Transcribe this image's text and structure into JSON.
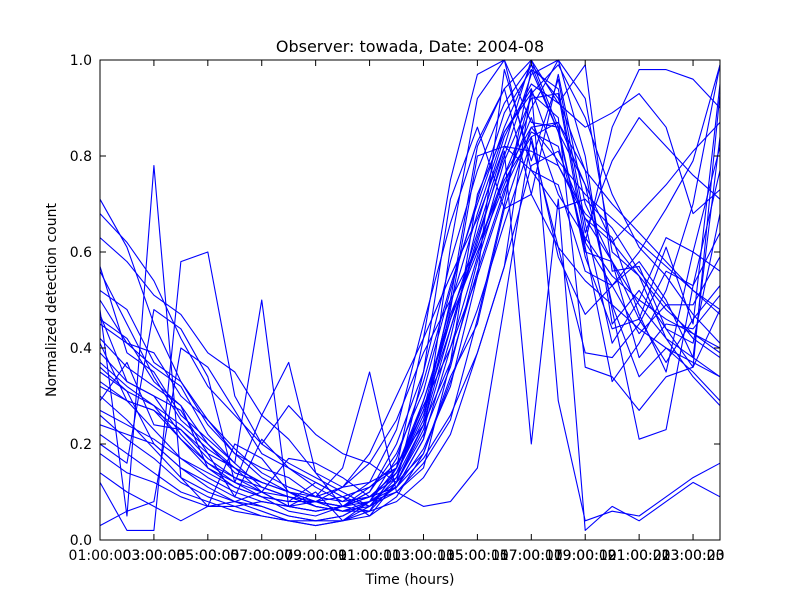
{
  "chart_data": {
    "type": "line",
    "title": "Observer: towada, Date: 2004-08",
    "xlabel": "Time (hours)",
    "ylabel": "Normalized detection count",
    "xlim": [
      1,
      24
    ],
    "ylim": [
      0,
      1
    ],
    "x_tick_values": [
      1,
      3,
      5,
      7,
      9,
      11,
      13,
      15,
      17,
      19,
      21,
      23
    ],
    "x_tick_labels_a": [
      "01:00:00",
      "03:00:00",
      "05:00:00",
      "07:00:00",
      "09:00:00",
      "11:00:00",
      "13:00:00",
      "15:00:00",
      "17:00:00",
      "19:00:00",
      "21:00:00",
      "23:00:00"
    ],
    "x_tick_labels_b": [
      "03:00:03",
      "05:00:05",
      "07:00:07",
      "09:00:09",
      "11:00:11",
      "13:00:13",
      "15:00:15",
      "17:00:17",
      "19:00:19",
      "21:00:21",
      "23:00:23"
    ],
    "y_ticks": [
      "0.0",
      "0.2",
      "0.4",
      "0.6",
      "0.8",
      "1.0"
    ],
    "grid": false,
    "line_color": "#0000ff",
    "x": [
      1,
      2,
      3,
      4,
      5,
      6,
      7,
      8,
      9,
      10,
      11,
      12,
      13,
      14,
      15,
      16,
      17,
      18,
      19,
      20,
      21,
      22,
      23,
      24
    ],
    "series": [
      {
        "values": [
          0.71,
          0.61,
          0.45,
          0.33,
          0.25,
          0.18,
          0.15,
          0.13,
          0.09,
          0.08,
          0.12,
          0.15,
          0.28,
          0.4,
          0.55,
          0.72,
          0.93,
          0.99,
          0.88,
          0.72,
          0.61,
          0.55,
          0.47,
          0.41
        ]
      },
      {
        "values": [
          0.56,
          0.45,
          0.34,
          0.25,
          0.2,
          0.15,
          0.12,
          0.1,
          0.08,
          0.07,
          0.09,
          0.14,
          0.26,
          0.46,
          0.64,
          0.82,
          1.0,
          0.86,
          0.59,
          0.44,
          0.46,
          0.37,
          0.46,
          0.53
        ]
      },
      {
        "values": [
          0.47,
          0.33,
          0.3,
          0.22,
          0.16,
          0.13,
          0.1,
          0.09,
          0.07,
          0.06,
          0.08,
          0.12,
          0.22,
          0.36,
          0.58,
          0.76,
          0.9,
          1.0,
          0.92,
          0.6,
          0.55,
          0.42,
          0.34,
          0.28
        ]
      },
      {
        "values": [
          0.41,
          0.29,
          0.23,
          0.17,
          0.13,
          0.1,
          0.08,
          0.07,
          0.06,
          0.07,
          0.1,
          0.18,
          0.31,
          0.52,
          0.71,
          0.89,
          0.98,
          0.85,
          0.74,
          0.62,
          0.55,
          0.48,
          0.43,
          0.39
        ]
      },
      {
        "values": [
          0.36,
          0.31,
          0.2,
          0.15,
          0.12,
          0.09,
          0.07,
          0.05,
          0.04,
          0.05,
          0.08,
          0.15,
          0.27,
          0.49,
          0.68,
          0.85,
          0.94,
          0.78,
          0.67,
          0.58,
          0.49,
          0.42,
          0.38,
          0.34
        ]
      },
      {
        "values": [
          0.3,
          0.25,
          0.19,
          0.13,
          0.1,
          0.08,
          0.06,
          0.04,
          0.03,
          0.04,
          0.06,
          0.12,
          0.24,
          0.44,
          0.63,
          0.8,
          0.97,
          1.0,
          0.8,
          0.45,
          0.52,
          0.44,
          0.36,
          0.48
        ]
      },
      {
        "values": [
          0.26,
          0.21,
          0.17,
          0.12,
          0.09,
          0.07,
          0.05,
          0.04,
          0.03,
          0.04,
          0.07,
          0.13,
          0.29,
          0.46,
          0.6,
          0.74,
          0.88,
          0.72,
          0.63,
          0.55,
          0.5,
          0.46,
          0.43,
          0.4
        ]
      },
      {
        "values": [
          0.22,
          0.18,
          0.14,
          0.1,
          0.08,
          0.06,
          0.05,
          0.04,
          0.04,
          0.05,
          0.08,
          0.17,
          0.33,
          0.53,
          0.7,
          0.86,
          0.99,
          0.92,
          0.77,
          0.7,
          0.64,
          0.58,
          0.52,
          0.47
        ]
      },
      {
        "values": [
          0.48,
          0.05,
          0.78,
          0.13,
          0.07,
          0.08,
          0.1,
          0.17,
          0.16,
          0.13,
          0.09,
          0.11,
          0.21,
          0.61,
          0.92,
          1.0,
          0.77,
          0.74,
          0.56,
          0.53,
          0.43,
          0.49,
          0.49,
          0.59
        ]
      },
      {
        "values": [
          0.12,
          0.02,
          0.02,
          0.58,
          0.6,
          0.3,
          0.2,
          0.28,
          0.22,
          0.18,
          0.16,
          0.12,
          0.35,
          0.71,
          0.86,
          0.69,
          0.72,
          0.61,
          0.39,
          0.38,
          0.45,
          0.56,
          0.53,
          0.77
        ]
      },
      {
        "values": [
          0.03,
          0.06,
          0.08,
          0.4,
          0.36,
          0.27,
          0.18,
          0.15,
          0.12,
          0.09,
          0.07,
          0.11,
          0.19,
          0.32,
          0.55,
          0.98,
          0.79,
          0.96,
          0.66,
          0.41,
          0.5,
          0.63,
          0.6,
          0.82
        ]
      },
      {
        "values": [
          0.5,
          0.41,
          0.36,
          0.32,
          0.22,
          0.16,
          0.5,
          0.07,
          0.1,
          0.04,
          0.08,
          0.1,
          0.15,
          0.37,
          0.72,
          0.85,
          0.93,
          0.88,
          0.36,
          0.34,
          0.27,
          0.34,
          0.36,
          0.93
        ]
      },
      {
        "values": [
          0.63,
          0.58,
          0.51,
          0.47,
          0.39,
          0.35,
          0.26,
          0.21,
          0.14,
          0.11,
          0.12,
          0.23,
          0.45,
          0.66,
          0.83,
          0.94,
          1.0,
          0.91,
          0.99,
          0.56,
          0.57,
          0.44,
          0.41,
          0.68
        ]
      },
      {
        "values": [
          0.2,
          0.16,
          0.48,
          0.44,
          0.34,
          0.12,
          0.26,
          0.37,
          0.14,
          0.07,
          0.06,
          0.15,
          0.42,
          0.75,
          0.97,
          1.0,
          0.87,
          0.86,
          0.6,
          0.58,
          0.38,
          0.45,
          0.44,
          0.51
        ]
      },
      {
        "values": [
          0.29,
          0.37,
          0.24,
          0.23,
          0.18,
          0.09,
          0.21,
          0.15,
          0.11,
          0.08,
          0.09,
          0.13,
          0.24,
          0.48,
          0.8,
          0.82,
          0.81,
          0.78,
          0.68,
          0.63,
          0.47,
          0.35,
          0.6,
          0.56
        ]
      },
      {
        "values": [
          0.68,
          0.62,
          0.54,
          0.42,
          0.32,
          0.26,
          0.2,
          0.16,
          0.13,
          0.1,
          0.07,
          0.14,
          0.25,
          0.5,
          0.82,
          0.94,
          0.72,
          0.97,
          0.7,
          0.58,
          0.46,
          0.61,
          0.45,
          0.95
        ]
      },
      {
        "values": [
          0.46,
          0.42,
          0.33,
          0.28,
          0.15,
          0.11,
          0.09,
          0.08,
          0.12,
          0.09,
          0.05,
          0.12,
          0.23,
          0.42,
          0.66,
          0.84,
          0.95,
          0.91,
          0.86,
          0.89,
          0.93,
          0.86,
          0.68,
          0.73
        ]
      },
      {
        "values": [
          0.39,
          0.33,
          0.3,
          0.27,
          0.18,
          0.15,
          0.1,
          0.07,
          0.06,
          0.07,
          0.1,
          0.2,
          0.35,
          0.58,
          0.77,
          0.91,
          0.99,
          0.85,
          0.61,
          0.33,
          0.41,
          0.52,
          0.7,
          0.99
        ]
      },
      {
        "values": [
          0.33,
          0.29,
          0.27,
          0.21,
          0.15,
          0.12,
          0.09,
          0.06,
          0.05,
          0.07,
          0.11,
          0.15,
          0.29,
          0.47,
          0.61,
          0.75,
          0.84,
          0.59,
          0.47,
          0.53,
          0.6,
          0.69,
          0.79,
          0.99
        ]
      },
      {
        "values": [
          0.24,
          0.22,
          0.2,
          0.15,
          0.11,
          0.08,
          0.07,
          0.05,
          0.04,
          0.04,
          0.05,
          0.09,
          0.18,
          0.33,
          0.48,
          0.66,
          0.83,
          0.61,
          0.54,
          0.49,
          0.44,
          0.4,
          0.37,
          0.34
        ]
      },
      {
        "values": [
          0.32,
          0.29,
          0.27,
          0.23,
          0.17,
          0.13,
          0.11,
          0.09,
          0.07,
          0.06,
          0.06,
          0.08,
          0.13,
          0.22,
          0.39,
          0.57,
          0.94,
          0.29,
          0.04,
          0.06,
          0.05,
          0.09,
          0.13,
          0.16
        ]
      },
      {
        "values": [
          0.37,
          0.32,
          0.28,
          0.21,
          0.16,
          0.12,
          0.1,
          0.07,
          0.06,
          0.07,
          0.09,
          0.14,
          0.27,
          0.44,
          0.62,
          0.81,
          0.2,
          0.71,
          0.02,
          0.07,
          0.04,
          0.08,
          0.12,
          0.09
        ]
      },
      {
        "values": [
          0.52,
          0.48,
          0.37,
          0.33,
          0.24,
          0.18,
          0.13,
          0.1,
          0.08,
          0.07,
          0.09,
          0.11,
          0.21,
          0.4,
          0.59,
          0.79,
          0.92,
          0.93,
          0.62,
          0.53,
          0.58,
          0.5,
          0.38,
          0.84
        ]
      },
      {
        "values": [
          0.57,
          0.39,
          0.35,
          0.26,
          0.21,
          0.16,
          0.11,
          0.09,
          0.08,
          0.06,
          0.08,
          0.12,
          0.18,
          0.34,
          0.45,
          0.69,
          0.86,
          0.87,
          0.77,
          0.48,
          0.21,
          0.23,
          0.53,
          0.64
        ]
      },
      {
        "values": [
          0.42,
          0.36,
          0.32,
          0.28,
          0.2,
          0.14,
          0.12,
          0.1,
          0.07,
          0.06,
          0.07,
          0.1,
          0.16,
          0.25,
          0.46,
          0.7,
          0.98,
          0.94,
          0.64,
          0.79,
          0.88,
          0.82,
          0.76,
          0.71
        ]
      },
      {
        "values": [
          0.18,
          0.14,
          0.12,
          0.09,
          0.07,
          0.07,
          0.08,
          0.07,
          0.08,
          0.11,
          0.16,
          0.25,
          0.39,
          0.5,
          0.61,
          0.76,
          0.86,
          0.79,
          0.72,
          0.67,
          0.62,
          0.57,
          0.52,
          0.48
        ]
      },
      {
        "values": [
          0.27,
          0.24,
          0.21,
          0.17,
          0.14,
          0.11,
          0.09,
          0.08,
          0.08,
          0.09,
          0.11,
          0.16,
          0.24,
          0.37,
          0.56,
          0.73,
          0.85,
          0.82,
          0.62,
          0.86,
          0.98,
          0.98,
          0.96,
          0.9
        ]
      },
      {
        "values": [
          0.14,
          0.1,
          0.07,
          0.04,
          0.07,
          0.2,
          0.17,
          0.1,
          0.09,
          0.15,
          0.35,
          0.1,
          0.07,
          0.08,
          0.15,
          0.49,
          0.84,
          0.87,
          0.74,
          0.49,
          0.34,
          0.4,
          0.35,
          0.29
        ]
      },
      {
        "values": [
          0.45,
          0.41,
          0.39,
          0.3,
          0.25,
          0.19,
          0.14,
          0.11,
          0.09,
          0.11,
          0.18,
          0.3,
          0.42,
          0.55,
          0.67,
          0.82,
          0.77,
          0.69,
          0.71,
          0.65,
          0.56,
          0.49,
          0.42,
          0.38
        ]
      },
      {
        "values": [
          0.35,
          0.31,
          0.28,
          0.24,
          0.19,
          0.15,
          0.12,
          0.1,
          0.08,
          0.07,
          0.08,
          0.11,
          0.17,
          0.26,
          0.39,
          0.57,
          0.78,
          0.81,
          0.67,
          0.62,
          0.68,
          0.74,
          0.81,
          0.87
        ]
      }
    ]
  }
}
